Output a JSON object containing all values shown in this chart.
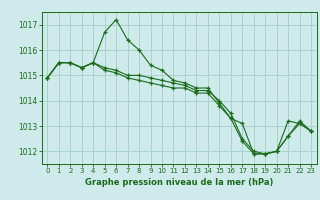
{
  "title": "Graphe pression niveau de la mer (hPa)",
  "background_color": "#ceeaea",
  "grid_color": "#a8d4cc",
  "line_color": "#1a6b1a",
  "marker_color": "#1a6b1a",
  "xlim": [
    -0.5,
    23.5
  ],
  "ylim": [
    1011.5,
    1017.5
  ],
  "yticks": [
    1012,
    1013,
    1014,
    1015,
    1016,
    1017
  ],
  "xticks": [
    0,
    1,
    2,
    3,
    4,
    5,
    6,
    7,
    8,
    9,
    10,
    11,
    12,
    13,
    14,
    15,
    16,
    17,
    18,
    19,
    20,
    21,
    22,
    23
  ],
  "series": [
    [
      1014.9,
      1015.5,
      1015.5,
      1015.3,
      1015.5,
      1016.7,
      1017.2,
      1016.4,
      1016.0,
      1015.4,
      1015.2,
      1014.8,
      1014.7,
      1014.5,
      1014.5,
      1013.9,
      1013.3,
      1013.1,
      1011.9,
      1011.9,
      1012.0,
      1012.6,
      1013.2,
      1012.8
    ],
    [
      1014.9,
      1015.5,
      1015.5,
      1015.3,
      1015.5,
      1015.3,
      1015.2,
      1015.0,
      1015.0,
      1014.9,
      1014.8,
      1014.7,
      1014.6,
      1014.4,
      1014.4,
      1014.0,
      1013.5,
      1012.5,
      1012.0,
      1011.9,
      1012.0,
      1013.2,
      1013.1,
      1012.8
    ],
    [
      1014.9,
      1015.5,
      1015.5,
      1015.3,
      1015.5,
      1015.2,
      1015.1,
      1014.9,
      1014.8,
      1014.7,
      1014.6,
      1014.5,
      1014.5,
      1014.3,
      1014.3,
      1013.8,
      1013.3,
      1012.4,
      1011.9,
      1011.9,
      1012.0,
      1012.6,
      1013.1,
      1012.8
    ]
  ]
}
